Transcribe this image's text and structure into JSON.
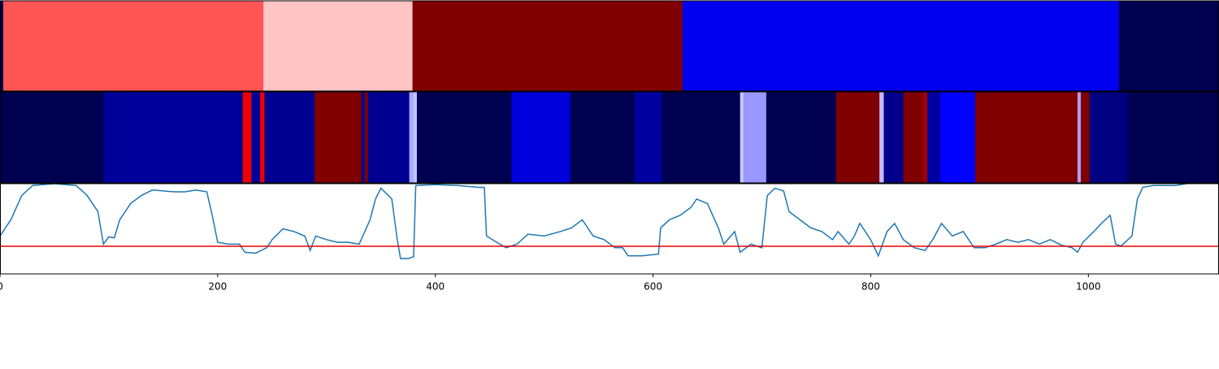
{
  "chart_data": [
    {
      "type": "segments",
      "xlim": [
        0,
        1120
      ],
      "segments": [
        {
          "start": 0,
          "end": 3,
          "color": "#000050"
        },
        {
          "start": 3,
          "end": 242,
          "color": "#ff5555"
        },
        {
          "start": 242,
          "end": 379,
          "color": "#ffc4c4"
        },
        {
          "start": 379,
          "end": 627,
          "color": "#800000"
        },
        {
          "start": 627,
          "end": 1028,
          "color": "#0000ee"
        },
        {
          "start": 1028,
          "end": 1120,
          "color": "#000050"
        }
      ]
    },
    {
      "type": "segments",
      "xlim": [
        0,
        1120
      ],
      "segments": [
        {
          "start": 0,
          "end": 95,
          "color": "#000050"
        },
        {
          "start": 95,
          "end": 223,
          "color": "#00009a"
        },
        {
          "start": 223,
          "end": 231,
          "color": "#ee0000"
        },
        {
          "start": 231,
          "end": 239,
          "color": "#00009a"
        },
        {
          "start": 239,
          "end": 243,
          "color": "#ee0000"
        },
        {
          "start": 243,
          "end": 289,
          "color": "#000090"
        },
        {
          "start": 289,
          "end": 332,
          "color": "#800000"
        },
        {
          "start": 332,
          "end": 335,
          "color": "#000090"
        },
        {
          "start": 335,
          "end": 338,
          "color": "#800000"
        },
        {
          "start": 338,
          "end": 376,
          "color": "#000090"
        },
        {
          "start": 376,
          "end": 380,
          "color": "#aaaaff"
        },
        {
          "start": 380,
          "end": 383,
          "color": "#c4c4ff"
        },
        {
          "start": 383,
          "end": 470,
          "color": "#000050"
        },
        {
          "start": 470,
          "end": 524,
          "color": "#0000dd"
        },
        {
          "start": 524,
          "end": 583,
          "color": "#000050"
        },
        {
          "start": 583,
          "end": 608,
          "color": "#0000a0"
        },
        {
          "start": 608,
          "end": 680,
          "color": "#000050"
        },
        {
          "start": 680,
          "end": 683,
          "color": "#c8c8ff"
        },
        {
          "start": 683,
          "end": 704,
          "color": "#9898ff"
        },
        {
          "start": 704,
          "end": 768,
          "color": "#000050"
        },
        {
          "start": 768,
          "end": 808,
          "color": "#800000"
        },
        {
          "start": 808,
          "end": 812,
          "color": "#c8b8ff"
        },
        {
          "start": 812,
          "end": 830,
          "color": "#00008a"
        },
        {
          "start": 830,
          "end": 848,
          "color": "#800000"
        },
        {
          "start": 848,
          "end": 852,
          "color": "#a00000"
        },
        {
          "start": 852,
          "end": 864,
          "color": "#0000a0"
        },
        {
          "start": 864,
          "end": 896,
          "color": "#0000ff"
        },
        {
          "start": 896,
          "end": 990,
          "color": "#800000"
        },
        {
          "start": 990,
          "end": 993,
          "color": "#b0a0ff"
        },
        {
          "start": 993,
          "end": 1001,
          "color": "#800000"
        },
        {
          "start": 1001,
          "end": 1036,
          "color": "#000080"
        },
        {
          "start": 1036,
          "end": 1120,
          "color": "#000050"
        }
      ]
    },
    {
      "type": "line",
      "xlim": [
        0,
        1120
      ],
      "ylim": [
        0,
        1
      ],
      "xticks": [
        0,
        200,
        400,
        600,
        800,
        1000
      ],
      "color": "#1f77b4",
      "hline": {
        "value": 0.306,
        "color": "#ee0000"
      },
      "x": [
        0,
        10,
        20,
        30,
        50,
        70,
        80,
        90,
        95,
        100,
        105,
        110,
        120,
        130,
        140,
        160,
        170,
        180,
        190,
        195,
        200,
        210,
        220,
        225,
        235,
        240,
        245,
        250,
        260,
        270,
        280,
        285,
        290,
        300,
        310,
        320,
        330,
        340,
        345,
        350,
        360,
        365,
        368,
        375,
        380,
        382,
        400,
        420,
        440,
        445,
        447,
        455,
        465,
        475,
        485,
        500,
        515,
        525,
        535,
        545,
        555,
        565,
        572,
        577,
        590,
        605,
        607,
        615,
        625,
        635,
        640,
        650,
        660,
        665,
        675,
        680,
        690,
        700,
        705,
        712,
        720,
        725,
        735,
        745,
        755,
        765,
        770,
        780,
        785,
        790,
        800,
        807,
        815,
        822,
        830,
        840,
        850,
        857,
        865,
        875,
        885,
        895,
        905,
        915,
        925,
        935,
        945,
        955,
        965,
        975,
        985,
        990,
        995,
        1005,
        1012,
        1020,
        1025,
        1030,
        1040,
        1045,
        1050,
        1060,
        1080,
        1090
      ],
      "values": [
        0.42,
        0.6,
        0.87,
        0.98,
        1.0,
        0.98,
        0.87,
        0.69,
        0.33,
        0.41,
        0.4,
        0.6,
        0.78,
        0.87,
        0.93,
        0.91,
        0.91,
        0.93,
        0.91,
        0.65,
        0.35,
        0.33,
        0.33,
        0.24,
        0.23,
        0.26,
        0.29,
        0.38,
        0.5,
        0.47,
        0.42,
        0.26,
        0.42,
        0.38,
        0.35,
        0.35,
        0.33,
        0.6,
        0.83,
        0.95,
        0.83,
        0.38,
        0.17,
        0.17,
        0.19,
        0.98,
        0.99,
        0.98,
        0.96,
        0.96,
        0.42,
        0.36,
        0.29,
        0.33,
        0.44,
        0.42,
        0.47,
        0.51,
        0.6,
        0.42,
        0.38,
        0.29,
        0.29,
        0.2,
        0.2,
        0.22,
        0.51,
        0.6,
        0.65,
        0.74,
        0.83,
        0.78,
        0.51,
        0.33,
        0.47,
        0.24,
        0.33,
        0.29,
        0.87,
        0.95,
        0.92,
        0.69,
        0.6,
        0.51,
        0.47,
        0.38,
        0.47,
        0.33,
        0.42,
        0.56,
        0.38,
        0.2,
        0.47,
        0.56,
        0.38,
        0.29,
        0.26,
        0.38,
        0.56,
        0.42,
        0.47,
        0.29,
        0.29,
        0.33,
        0.38,
        0.35,
        0.38,
        0.33,
        0.38,
        0.32,
        0.29,
        0.24,
        0.35,
        0.47,
        0.56,
        0.65,
        0.33,
        0.31,
        0.42,
        0.83,
        0.96,
        0.98,
        0.98,
        1.0
      ]
    }
  ]
}
